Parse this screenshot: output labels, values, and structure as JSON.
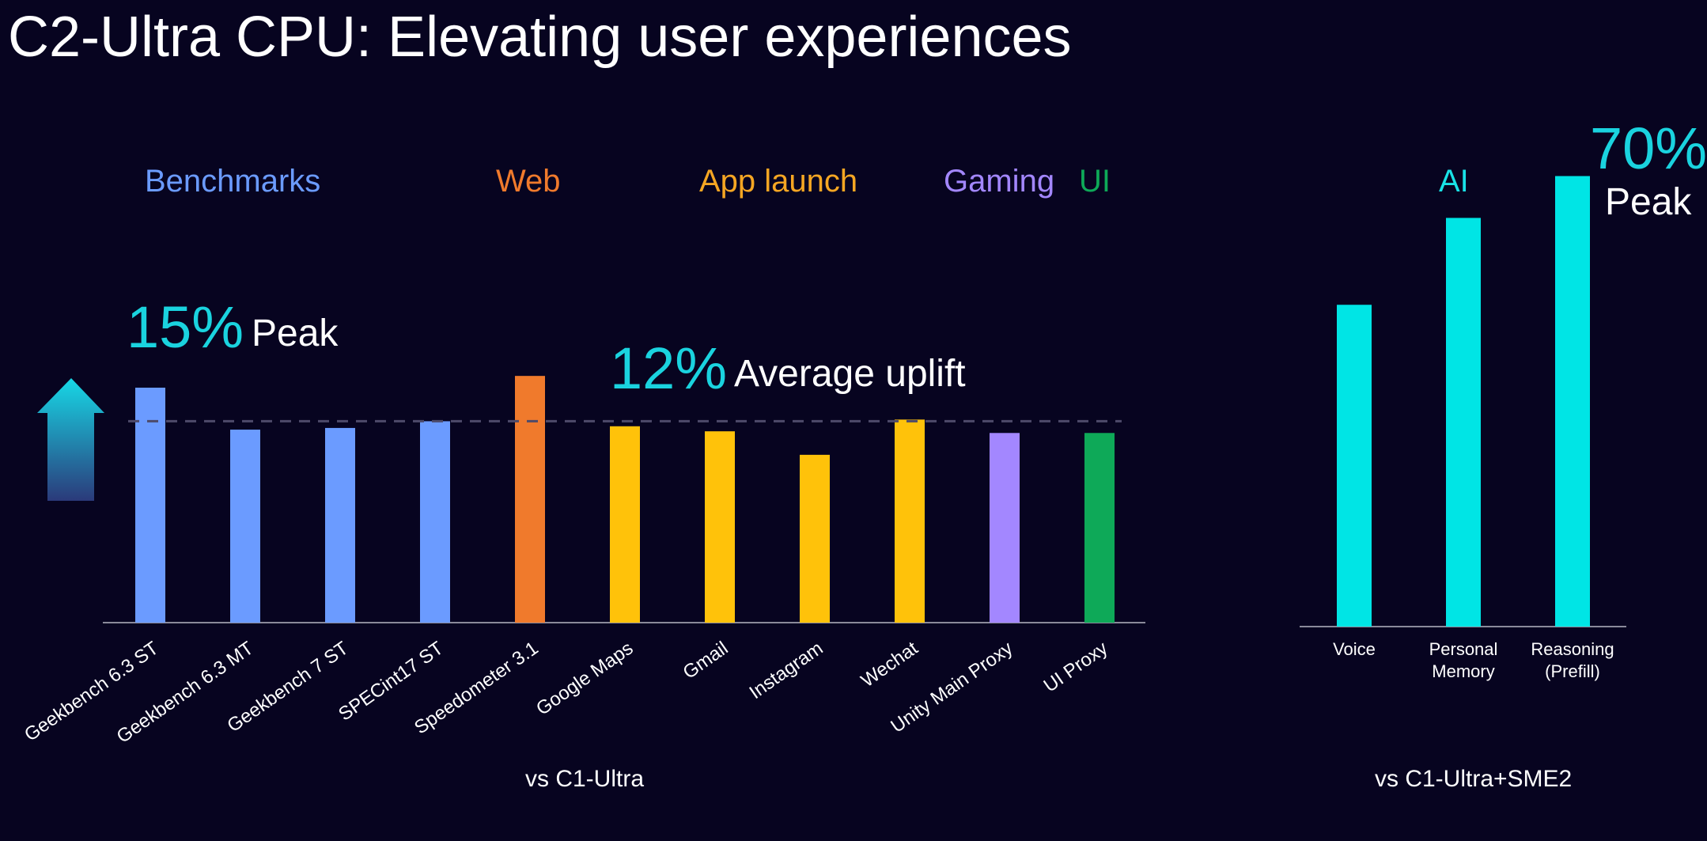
{
  "title": "C2-Ultra CPU: Elevating user experiences",
  "category_headers": [
    {
      "label": "Benchmarks",
      "color": "#6b9bff"
    },
    {
      "label": "Web",
      "color": "#f07a2c"
    },
    {
      "label": "App launch",
      "color": "#f5a623"
    },
    {
      "label": "Gaming",
      "color": "#a387ff"
    },
    {
      "label": "UI",
      "color": "#0ea958"
    },
    {
      "label": "AI",
      "color": "#19e2e6"
    }
  ],
  "callouts": {
    "peak_left_value": "15%",
    "peak_left_label": "Peak",
    "average_value": "12%",
    "average_label": "Average uplift",
    "peak_right_value": "70%",
    "peak_right_label": "Peak"
  },
  "chart_data": [
    {
      "type": "bar",
      "xlabel": "vs C1-Ultra",
      "ylim": [
        0,
        17.3
      ],
      "average_line": 12,
      "categories": [
        "Geekbench 6.3 ST",
        "Geekbench 6.3 MT",
        "Geekbench 7 ST",
        "SPECint17 ST",
        "Speedometer 3.1",
        "Google Maps",
        "Gmail",
        "Instagram",
        "Wechat",
        "Unity Main Proxy",
        "UI Proxy"
      ],
      "values": [
        14.0,
        11.5,
        11.6,
        12.0,
        14.7,
        11.7,
        11.4,
        10.0,
        12.1,
        11.3,
        11.3
      ],
      "colors": [
        "#6b9bff",
        "#6b9bff",
        "#6b9bff",
        "#6b9bff",
        "#f07a2c",
        "#ffc20a",
        "#ffc20a",
        "#ffc20a",
        "#ffc20a",
        "#a387ff",
        "#0ea958"
      ]
    },
    {
      "type": "bar",
      "xlabel": "vs C1-Ultra+SME2",
      "ylim": [
        0,
        74
      ],
      "categories": [
        "Voice",
        "Personal Memory",
        "Reasoning (Prefill)"
      ],
      "values": [
        50,
        63.5,
        70
      ],
      "colors": [
        "#00e5e5",
        "#00e5e5",
        "#00e5e5"
      ]
    }
  ]
}
